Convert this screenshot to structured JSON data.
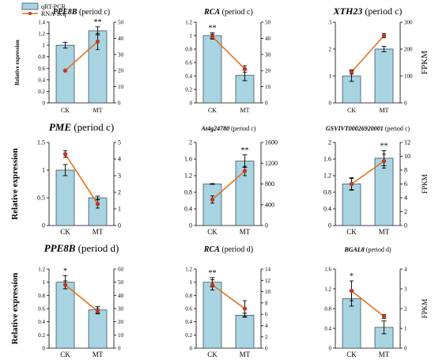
{
  "legend": {
    "bar_label": "qRT-PCR",
    "line_label": "RNA-Seq",
    "colors": {
      "bar": "#a8d4e2",
      "bar_edge": "#2d3e4a",
      "line": "#e0731e",
      "point": "#c0392b"
    }
  },
  "chart_data": [
    {
      "type": "bar+line",
      "gene": "PPE8B",
      "period": "(period c)",
      "categories": [
        "CK",
        "MT"
      ],
      "ylabel": "Relative expression",
      "ylabel2": "",
      "ylim": [
        0,
        1.4
      ],
      "yticks": [
        0,
        0.2,
        0.4,
        0.6,
        0.8,
        1,
        1.2,
        1.4
      ],
      "y2lim": [
        0,
        50
      ],
      "y2ticks": [
        0,
        10,
        20,
        30,
        40,
        50
      ],
      "bars": [
        1.0,
        1.25
      ],
      "bar_err": [
        0.05,
        0.07
      ],
      "sig": [
        "",
        "**"
      ],
      "line": [
        20,
        38
      ],
      "line_err": [
        0,
        5
      ]
    },
    {
      "type": "bar+line",
      "gene": "RCA",
      "period": "(period c)",
      "categories": [
        "CK",
        "MT"
      ],
      "ylabel": "",
      "ylabel2": "",
      "ylim": [
        0,
        1.2
      ],
      "yticks": [
        0,
        0.2,
        0.4,
        0.6,
        0.8,
        1,
        1.2
      ],
      "y2lim": [
        0,
        50
      ],
      "y2ticks": [
        0,
        10,
        20,
        30,
        40,
        50
      ],
      "bars": [
        1.0,
        0.41
      ],
      "bar_err": [
        0.04,
        0.08
      ],
      "sig": [
        "**",
        ""
      ],
      "line": [
        41,
        21
      ],
      "line_err": [
        1.5,
        2
      ]
    },
    {
      "type": "bar+line",
      "gene": "XTH23",
      "period": "(period c)",
      "categories": [
        "CK",
        "MT"
      ],
      "ylabel": "",
      "ylabel2": "FPKM",
      "ylim": [
        0,
        3
      ],
      "yticks": [
        0,
        1,
        2,
        3
      ],
      "y2lim": [
        0,
        300
      ],
      "y2ticks": [
        0,
        100,
        200,
        300
      ],
      "bars": [
        1.0,
        2.0
      ],
      "bar_err": [
        0.2,
        0.1
      ],
      "sig": [
        "",
        ""
      ],
      "line": [
        115,
        250
      ],
      "line_err": [
        8,
        8
      ]
    },
    {
      "type": "bar+line",
      "gene": "PME",
      "period": "(period c)",
      "categories": [
        "CK",
        "MT"
      ],
      "ylabel": "Relative expression",
      "ylabel2": "",
      "ylim": [
        0,
        1.5
      ],
      "yticks": [
        0,
        0.5,
        1,
        1.5
      ],
      "y2lim": [
        0,
        5
      ],
      "y2ticks": [
        0,
        1,
        2,
        3,
        4,
        5
      ],
      "bars": [
        1.0,
        0.5
      ],
      "bar_err": [
        0.1,
        0.03
      ],
      "sig": [
        "",
        ""
      ],
      "line": [
        4.3,
        1.3
      ],
      "line_err": [
        0.2,
        0.25
      ]
    },
    {
      "type": "bar+line",
      "gene": "At4g24780",
      "period": "(period c)",
      "categories": [
        "CK",
        "MT"
      ],
      "ylabel": "",
      "ylabel2": "",
      "ylim": [
        0,
        2
      ],
      "yticks": [
        0,
        0.4,
        0.8,
        1.2,
        1.6,
        2
      ],
      "y2lim": [
        0,
        1600
      ],
      "y2ticks": [
        0,
        400,
        800,
        1200,
        1600
      ],
      "bars": [
        1.0,
        1.55
      ],
      "bar_err": [
        0.01,
        0.15
      ],
      "sig": [
        "",
        "**"
      ],
      "line": [
        500,
        1050
      ],
      "line_err": [
        70,
        90
      ]
    },
    {
      "type": "bar+line",
      "gene": "GSVIVT00026920001",
      "period": "(period c)",
      "categories": [
        "CK",
        "MT"
      ],
      "ylabel": "",
      "ylabel2": "FPKM",
      "ylim": [
        0,
        2
      ],
      "yticks": [
        0,
        0.4,
        0.8,
        1.2,
        1.6,
        2
      ],
      "y2lim": [
        0,
        12
      ],
      "y2ticks": [
        0,
        2,
        4,
        6,
        8,
        10,
        12
      ],
      "bars": [
        1.0,
        1.62
      ],
      "bar_err": [
        0.15,
        0.18
      ],
      "sig": [
        "",
        "**"
      ],
      "line": [
        6,
        9.3
      ],
      "line_err": [
        0.8,
        1
      ]
    },
    {
      "type": "bar+line",
      "gene": "PPE8B",
      "period": "(period d)",
      "categories": [
        "CK",
        "MT"
      ],
      "ylabel": "Relative expression",
      "ylabel2": "",
      "ylim": [
        0,
        1.2
      ],
      "yticks": [
        0,
        0.2,
        0.4,
        0.6,
        0.8,
        1,
        1.2
      ],
      "y2lim": [
        0,
        60
      ],
      "y2ticks": [
        0,
        10,
        20,
        30,
        40,
        50,
        60
      ],
      "bars": [
        1.0,
        0.58
      ],
      "bar_err": [
        0.1,
        0.05
      ],
      "sig": [
        "*",
        ""
      ],
      "line": [
        48,
        28
      ],
      "line_err": [
        3,
        2
      ]
    },
    {
      "type": "bar+line",
      "gene": "RCA",
      "period": "(period d)",
      "categories": [
        "CK",
        "MT"
      ],
      "ylabel": "",
      "ylabel2": "",
      "ylim": [
        0,
        1.2
      ],
      "yticks": [
        0,
        0.2,
        0.4,
        0.6,
        0.8,
        1,
        1.2
      ],
      "y2lim": [
        0,
        14
      ],
      "y2ticks": [
        0,
        2,
        4,
        6,
        8,
        10,
        12,
        14
      ],
      "bars": [
        1.0,
        0.5
      ],
      "bar_err": [
        0.07,
        0.03
      ],
      "sig": [
        "**",
        ""
      ],
      "line": [
        11.2,
        7
      ],
      "line_err": [
        0.9,
        1.4
      ]
    },
    {
      "type": "bar+line",
      "gene": "BGAL8",
      "period": "(period d)",
      "categories": [
        "CK",
        "MT"
      ],
      "ylabel": "",
      "ylabel2": "FPKM",
      "ylim": [
        0,
        1.6
      ],
      "yticks": [
        0,
        0.4,
        0.8,
        1.2,
        1.6
      ],
      "y2lim": [
        0,
        4
      ],
      "y2ticks": [
        0,
        1,
        2,
        3,
        4
      ],
      "bars": [
        1.0,
        0.42
      ],
      "bar_err": [
        0.15,
        0.13
      ],
      "sig": [
        "*",
        ""
      ],
      "line": [
        2.9,
        1.6
      ],
      "line_err": [
        0.5,
        0.1
      ]
    }
  ]
}
